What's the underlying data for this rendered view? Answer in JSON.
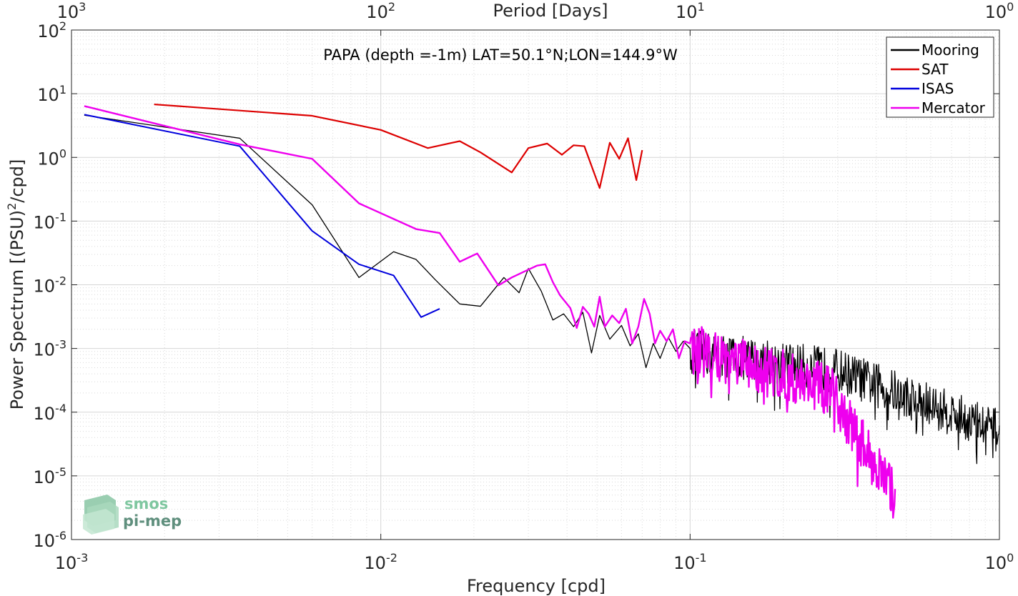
{
  "chart_data": {
    "type": "line",
    "title": "PAPA (depth =-1m) LAT=50.1°N;LON=144.9°W",
    "xlabel": "Frequency [cpd]",
    "ylabel": "Power Spectrum [(PSU)²/cpd]",
    "ylabel_parts": {
      "main": "Power Spectrum [(PSU)",
      "sup": "2",
      "tail": "/cpd]"
    },
    "top_xlabel": "Period [Days]",
    "x_scale": "log",
    "y_scale": "log",
    "xlim": [
      0.001,
      1
    ],
    "ylim": [
      1e-06,
      100
    ],
    "grid": true,
    "legend_position": "top-right",
    "x_ticks": [
      {
        "v": 0.001,
        "b": "10",
        "e": "-3"
      },
      {
        "v": 0.01,
        "b": "10",
        "e": "-2"
      },
      {
        "v": 0.1,
        "b": "10",
        "e": "-1"
      },
      {
        "v": 1,
        "b": "10",
        "e": "0"
      }
    ],
    "top_ticks": [
      {
        "v": 0.001,
        "b": "10",
        "e": "3"
      },
      {
        "v": 0.01,
        "b": "10",
        "e": "2"
      },
      {
        "v": 0.1,
        "b": "10",
        "e": "1"
      },
      {
        "v": 1,
        "b": "10",
        "e": "0"
      }
    ],
    "y_ticks": [
      {
        "v": 1e-06,
        "b": "10",
        "e": "-6"
      },
      {
        "v": 1e-05,
        "b": "10",
        "e": "-5"
      },
      {
        "v": 0.0001,
        "b": "10",
        "e": "-4"
      },
      {
        "v": 0.001,
        "b": "10",
        "e": "-3"
      },
      {
        "v": 0.01,
        "b": "10",
        "e": "-2"
      },
      {
        "v": 0.1,
        "b": "10",
        "e": "-1"
      },
      {
        "v": 1,
        "b": "10",
        "e": "0"
      },
      {
        "v": 10,
        "b": "10",
        "e": "1"
      },
      {
        "v": 100,
        "b": "10",
        "e": "2"
      }
    ],
    "series": [
      {
        "name": "Mooring",
        "color": "#000000",
        "width": 1.3,
        "noise": {
          "kind": "mooring",
          "fmin": 0.1,
          "fmax": 1.0,
          "y0": 0.0009,
          "yhi": 0.00045,
          "yend": 5e-05,
          "amp": 0.35
        },
        "points": [
          [
            0.0011,
            4.6
          ],
          [
            0.0035,
            2.0
          ],
          [
            0.006,
            0.18
          ],
          [
            0.0085,
            0.013
          ],
          [
            0.011,
            0.033
          ],
          [
            0.013,
            0.025
          ],
          [
            0.015,
            0.012
          ],
          [
            0.018,
            0.005
          ],
          [
            0.021,
            0.0046
          ],
          [
            0.025,
            0.013
          ],
          [
            0.028,
            0.0075
          ],
          [
            0.03,
            0.018
          ],
          [
            0.033,
            0.008
          ],
          [
            0.036,
            0.0028
          ],
          [
            0.039,
            0.0035
          ],
          [
            0.042,
            0.0022
          ],
          [
            0.045,
            0.0037
          ],
          [
            0.048,
            0.00085
          ],
          [
            0.051,
            0.0033
          ],
          [
            0.055,
            0.0014
          ],
          [
            0.06,
            0.0023
          ],
          [
            0.064,
            0.0011
          ],
          [
            0.068,
            0.0017
          ],
          [
            0.072,
            0.0005
          ],
          [
            0.076,
            0.0012
          ],
          [
            0.08,
            0.0007
          ],
          [
            0.085,
            0.0015
          ],
          [
            0.09,
            0.0009
          ],
          [
            0.095,
            0.0013
          ],
          [
            0.1,
            0.001
          ]
        ]
      },
      {
        "name": "SAT",
        "color": "#dd0000",
        "width": 2.2,
        "points": [
          [
            0.00185,
            6.8
          ],
          [
            0.006,
            4.5
          ],
          [
            0.01,
            2.7
          ],
          [
            0.0142,
            1.4
          ],
          [
            0.018,
            1.8
          ],
          [
            0.021,
            1.2
          ],
          [
            0.0265,
            0.58
          ],
          [
            0.03,
            1.4
          ],
          [
            0.0345,
            1.65
          ],
          [
            0.0385,
            1.1
          ],
          [
            0.042,
            1.55
          ],
          [
            0.0455,
            1.5
          ],
          [
            0.051,
            0.33
          ],
          [
            0.055,
            1.7
          ],
          [
            0.059,
            0.95
          ],
          [
            0.063,
            2.0
          ],
          [
            0.067,
            0.44
          ],
          [
            0.07,
            1.3
          ]
        ]
      },
      {
        "name": "ISAS",
        "color": "#0000dd",
        "width": 2.0,
        "points": [
          [
            0.0011,
            4.7
          ],
          [
            0.0035,
            1.5
          ],
          [
            0.006,
            0.07
          ],
          [
            0.0085,
            0.021
          ],
          [
            0.011,
            0.014
          ],
          [
            0.0135,
            0.0031
          ],
          [
            0.0155,
            0.0042
          ]
        ]
      },
      {
        "name": "Mercator",
        "color": "#ee00ee",
        "width": 2.4,
        "noise": {
          "kind": "mercator",
          "fmin": 0.1,
          "fmax": 0.46,
          "y0": 0.001,
          "amp": 0.4
        },
        "points": [
          [
            0.0011,
            6.4
          ],
          [
            0.0035,
            1.6
          ],
          [
            0.006,
            0.95
          ],
          [
            0.0085,
            0.19
          ],
          [
            0.013,
            0.075
          ],
          [
            0.0155,
            0.065
          ],
          [
            0.018,
            0.023
          ],
          [
            0.0205,
            0.031
          ],
          [
            0.024,
            0.0098
          ],
          [
            0.0265,
            0.013
          ],
          [
            0.029,
            0.016
          ],
          [
            0.032,
            0.02
          ],
          [
            0.034,
            0.021
          ],
          [
            0.036,
            0.011
          ],
          [
            0.038,
            0.0068
          ],
          [
            0.041,
            0.0043
          ],
          [
            0.043,
            0.0021
          ],
          [
            0.045,
            0.0045
          ],
          [
            0.047,
            0.0035
          ],
          [
            0.049,
            0.0022
          ],
          [
            0.051,
            0.0065
          ],
          [
            0.053,
            0.0022
          ],
          [
            0.056,
            0.0033
          ],
          [
            0.059,
            0.0025
          ],
          [
            0.062,
            0.0042
          ],
          [
            0.065,
            0.0012
          ],
          [
            0.068,
            0.0022
          ],
          [
            0.071,
            0.006
          ],
          [
            0.074,
            0.0035
          ],
          [
            0.077,
            0.0012
          ],
          [
            0.08,
            0.0019
          ],
          [
            0.084,
            0.0013
          ],
          [
            0.088,
            0.002
          ],
          [
            0.092,
            0.0007
          ],
          [
            0.096,
            0.0013
          ],
          [
            0.1,
            0.0012
          ]
        ]
      }
    ]
  },
  "logo": {
    "line1": "smos",
    "line2": "pi-mep"
  }
}
